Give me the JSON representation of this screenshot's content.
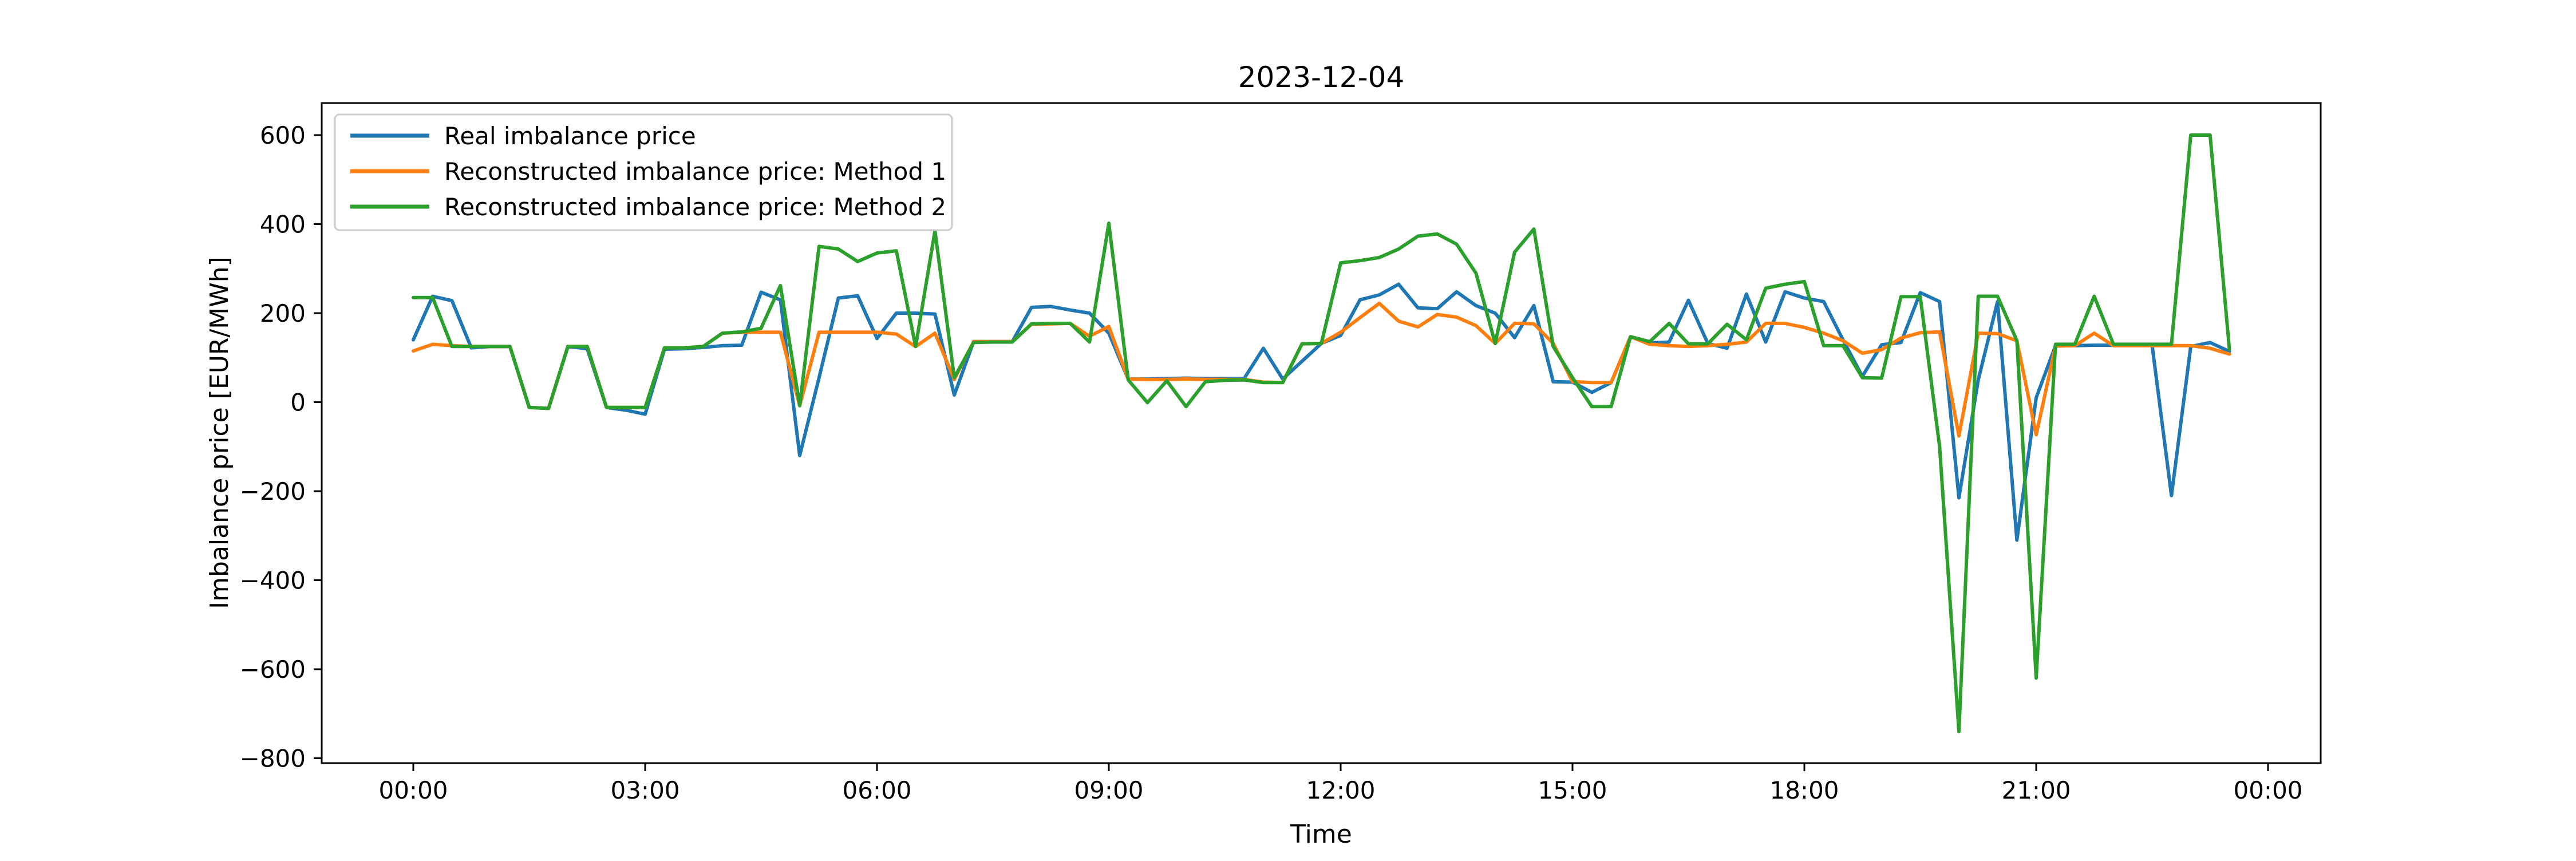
{
  "chart_data": {
    "type": "line",
    "title": "2023-12-04",
    "xlabel": "Time",
    "ylabel": "Imbalance price [EUR/MWh]",
    "x_unit": "hours_of_day",
    "x_start": 0.0,
    "x_step": 0.25,
    "xlim_hours": [
      -1.19,
      24.68
    ],
    "ylim": [
      -811,
      672
    ],
    "grid": false,
    "legend_position": "upper left",
    "x_ticks": [
      {
        "t": 0,
        "label": "00:00"
      },
      {
        "t": 3,
        "label": "03:00"
      },
      {
        "t": 6,
        "label": "06:00"
      },
      {
        "t": 9,
        "label": "09:00"
      },
      {
        "t": 12,
        "label": "12:00"
      },
      {
        "t": 15,
        "label": "15:00"
      },
      {
        "t": 18,
        "label": "18:00"
      },
      {
        "t": 21,
        "label": "21:00"
      },
      {
        "t": 24,
        "label": "00:00"
      }
    ],
    "y_ticks": [
      {
        "v": 600,
        "label": "600"
      },
      {
        "v": 400,
        "label": "400"
      },
      {
        "v": 200,
        "label": "200"
      },
      {
        "v": 0,
        "label": "0"
      },
      {
        "v": -200,
        "label": "−200"
      },
      {
        "v": -400,
        "label": "−400"
      },
      {
        "v": -600,
        "label": "−600"
      },
      {
        "v": -800,
        "label": "−800"
      }
    ],
    "series": [
      {
        "name": "Real imbalance price",
        "color": "#1f77b4",
        "values": [
          140,
          238,
          228,
          122,
          125,
          125,
          -12,
          -14,
          125,
          120,
          -12,
          -18,
          -27,
          119,
          120,
          123,
          127,
          128,
          247,
          230,
          -120,
          55,
          234,
          239,
          143,
          200,
          200,
          198,
          16,
          136,
          136,
          136,
          213,
          215,
          207,
          200,
          155,
          52,
          52,
          53,
          54,
          53,
          53,
          53,
          121,
          52,
          92,
          132,
          150,
          230,
          241,
          265,
          212,
          210,
          248,
          217,
          200,
          145,
          217,
          46,
          45,
          22,
          44,
          147,
          133,
          135,
          229,
          132,
          121,
          243,
          135,
          248,
          234,
          226,
          140,
          58,
          129,
          134,
          246,
          226,
          -215,
          50,
          226,
          -310,
          10,
          127,
          127,
          128,
          128,
          128,
          128,
          -210,
          125,
          134,
          114
        ]
      },
      {
        "name": "Reconstructed imbalance price: Method 1",
        "color": "#ff7f0e",
        "values": [
          115,
          130,
          127,
          125,
          125,
          125,
          -12,
          -14,
          125,
          125,
          -12,
          -12,
          -12,
          122,
          122,
          125,
          155,
          157,
          157,
          157,
          -8,
          157,
          157,
          157,
          157,
          153,
          125,
          155,
          51,
          136,
          136,
          136,
          175,
          176,
          177,
          148,
          170,
          52,
          51,
          51,
          52,
          51,
          51,
          51,
          45,
          44,
          131,
          132,
          157,
          190,
          222,
          182,
          169,
          197,
          191,
          172,
          132,
          177,
          176,
          132,
          46,
          44,
          44,
          147,
          130,
          127,
          125,
          127,
          130,
          135,
          177,
          177,
          168,
          155,
          138,
          110,
          118,
          144,
          156,
          158,
          -76,
          155,
          154,
          138,
          -73,
          126,
          127,
          155,
          127,
          127,
          127,
          127,
          127,
          121,
          108
        ]
      },
      {
        "name": "Reconstructed imbalance price: Method 2",
        "color": "#2ca02c",
        "values": [
          235,
          235,
          125,
          125,
          125,
          125,
          -12,
          -14,
          125,
          125,
          -12,
          -12,
          -12,
          122,
          122,
          125,
          155,
          158,
          166,
          262,
          -8,
          350,
          344,
          316,
          335,
          340,
          125,
          385,
          55,
          134,
          135,
          135,
          176,
          177,
          177,
          135,
          402,
          50,
          -1,
          48,
          -10,
          46,
          49,
          50,
          44,
          44,
          131,
          132,
          313,
          318,
          325,
          344,
          373,
          378,
          355,
          290,
          132,
          337,
          389,
          125,
          55,
          -10,
          -10,
          147,
          136,
          177,
          131,
          131,
          175,
          140,
          256,
          265,
          271,
          127,
          127,
          55,
          54,
          237,
          237,
          -100,
          -740,
          238,
          238,
          138,
          -620,
          130,
          130,
          238,
          130,
          130,
          130,
          130,
          600,
          600,
          119
        ]
      }
    ]
  }
}
